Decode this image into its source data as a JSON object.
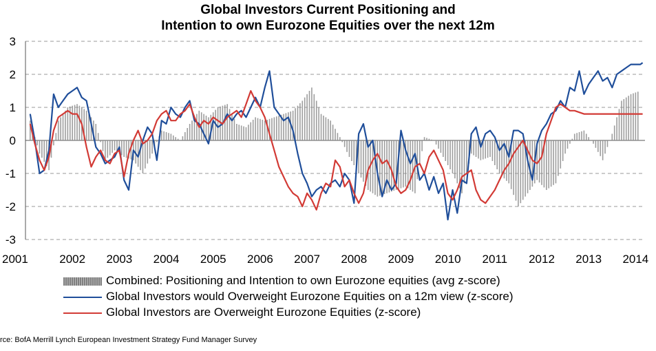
{
  "chart_data": {
    "type": "line",
    "title": "Global Investors Current Positioning and",
    "subtitle": "Intention to own Eurozone Equities over the next 12m",
    "xlabel": "",
    "ylabel": "",
    "ylim": [
      -3,
      3
    ],
    "xlim": [
      2001.0,
      2014.2
    ],
    "yticks": [
      "3",
      "2",
      "1",
      "0",
      "-1",
      "-2",
      "-3"
    ],
    "xticks": [
      "2001",
      "2002",
      "2003",
      "2004",
      "2005",
      "2006",
      "2007",
      "2008",
      "2009",
      "2010",
      "2011",
      "2012",
      "2013",
      "2014"
    ],
    "grid": "horizontal-dashed",
    "legend_position": "bottom",
    "series": [
      {
        "name": "Combined: Positioning and Intention to own Eurozone equities (avg z-score)",
        "type": "bar",
        "color": "#8c8c8c",
        "x": [
          2001.1,
          2001.3,
          2001.5,
          2001.7,
          2001.9,
          2002.1,
          2002.3,
          2002.5,
          2002.7,
          2002.9,
          2003.1,
          2003.3,
          2003.5,
          2003.7,
          2003.9,
          2004.1,
          2004.3,
          2004.5,
          2004.7,
          2004.9,
          2005.1,
          2005.3,
          2005.5,
          2005.7,
          2005.9,
          2006.1,
          2006.3,
          2006.5,
          2006.7,
          2006.9,
          2007.1,
          2007.3,
          2007.5,
          2007.7,
          2007.9,
          2008.1,
          2008.3,
          2008.5,
          2008.7,
          2008.9,
          2009.1,
          2009.3,
          2009.5,
          2009.7,
          2009.9,
          2010.1,
          2010.3,
          2010.5,
          2010.7,
          2010.9,
          2011.1,
          2011.3,
          2011.5,
          2011.7,
          2011.9,
          2012.1,
          2012.3,
          2012.5,
          2012.7,
          2012.9,
          2013.1,
          2013.3,
          2013.5,
          2013.7,
          2013.9,
          2014.1
        ],
        "values": [
          0.6,
          -0.4,
          -0.9,
          0.6,
          1.0,
          1.1,
          0.9,
          0.5,
          -0.6,
          -0.3,
          -0.5,
          -0.6,
          -1.0,
          -0.4,
          0.3,
          0.2,
          0.0,
          0.5,
          0.9,
          0.7,
          1.0,
          1.1,
          0.5,
          0.4,
          0.7,
          0.6,
          0.7,
          0.8,
          0.9,
          1.2,
          1.6,
          0.8,
          0.6,
          0.1,
          -0.5,
          -1.0,
          -1.5,
          -1.7,
          -1.6,
          -1.5,
          -1.4,
          -1.6,
          0.1,
          0.0,
          -0.5,
          -1.0,
          -1.6,
          -0.4,
          -0.6,
          -0.5,
          -1.0,
          -1.3,
          -2.0,
          -1.6,
          -1.2,
          -1.5,
          -1.3,
          -0.4,
          0.2,
          0.3,
          -0.1,
          -0.6,
          0.2,
          1.2,
          1.4,
          1.5
        ]
      },
      {
        "name": "Global Investors would Overweight Eurozone Equities on a 12m view (z-score)",
        "type": "line",
        "color": "#1f4e9a",
        "x": [
          2001.1,
          2001.2,
          2001.3,
          2001.4,
          2001.5,
          2001.6,
          2001.7,
          2001.8,
          2001.9,
          2002.0,
          2002.1,
          2002.2,
          2002.3,
          2002.4,
          2002.5,
          2002.6,
          2002.7,
          2002.8,
          2002.9,
          2003.0,
          2003.1,
          2003.2,
          2003.3,
          2003.4,
          2003.5,
          2003.6,
          2003.7,
          2003.8,
          2003.9,
          2004.0,
          2004.1,
          2004.2,
          2004.3,
          2004.4,
          2004.5,
          2004.6,
          2004.7,
          2004.8,
          2004.9,
          2005.0,
          2005.1,
          2005.2,
          2005.3,
          2005.4,
          2005.5,
          2005.6,
          2005.7,
          2005.8,
          2005.9,
          2006.0,
          2006.1,
          2006.2,
          2006.3,
          2006.4,
          2006.5,
          2006.6,
          2006.7,
          2006.8,
          2006.9,
          2007.0,
          2007.1,
          2007.2,
          2007.3,
          2007.4,
          2007.5,
          2007.6,
          2007.7,
          2007.8,
          2007.9,
          2008.0,
          2008.1,
          2008.2,
          2008.3,
          2008.4,
          2008.5,
          2008.6,
          2008.7,
          2008.8,
          2008.9,
          2009.0,
          2009.1,
          2009.2,
          2009.3,
          2009.4,
          2009.5,
          2009.6,
          2009.7,
          2009.8,
          2009.9,
          2010.0,
          2010.1,
          2010.2,
          2010.3,
          2010.4,
          2010.5,
          2010.6,
          2010.7,
          2010.8,
          2010.9,
          2011.0,
          2011.1,
          2011.2,
          2011.3,
          2011.4,
          2011.5,
          2011.6,
          2011.7,
          2011.8,
          2011.9,
          2012.0,
          2012.1,
          2012.2,
          2012.3,
          2012.4,
          2012.5,
          2012.6,
          2012.7,
          2012.8,
          2012.9,
          2013.0,
          2013.1,
          2013.2,
          2013.3,
          2013.4,
          2013.5,
          2013.6,
          2013.7,
          2013.8,
          2013.9,
          2014.0,
          2014.1,
          2014.15
        ],
        "values": [
          0.8,
          0.0,
          -1.0,
          -0.9,
          -0.3,
          1.4,
          1.0,
          1.2,
          1.4,
          1.5,
          1.6,
          1.3,
          1.2,
          0.5,
          -0.2,
          -0.4,
          -0.7,
          -0.6,
          -0.5,
          -0.2,
          -1.2,
          -1.5,
          -0.3,
          -0.5,
          0.0,
          0.4,
          0.2,
          -0.6,
          0.6,
          0.5,
          1.0,
          0.8,
          0.7,
          1.0,
          1.2,
          0.6,
          0.5,
          0.2,
          -0.1,
          0.6,
          0.4,
          0.5,
          0.8,
          0.6,
          0.8,
          0.9,
          0.7,
          1.0,
          1.3,
          1.0,
          1.6,
          2.1,
          1.0,
          0.8,
          0.6,
          0.7,
          0.3,
          -0.4,
          -1.0,
          -1.3,
          -1.7,
          -1.5,
          -1.4,
          -1.6,
          -1.3,
          -1.2,
          -1.4,
          -1.0,
          -1.2,
          -1.9,
          0.2,
          0.5,
          -0.2,
          0.0,
          -1.0,
          -1.7,
          -1.2,
          -1.5,
          -1.3,
          0.3,
          -0.3,
          -0.7,
          -0.4,
          -1.2,
          -1.0,
          -1.5,
          -1.1,
          -1.6,
          -1.3,
          -2.4,
          -1.5,
          -2.2,
          -1.2,
          -1.3,
          0.2,
          0.4,
          -0.2,
          0.2,
          0.3,
          0.1,
          -0.3,
          -0.1,
          -0.5,
          0.3,
          0.3,
          0.2,
          -0.6,
          -1.2,
          -0.1,
          0.3,
          0.5,
          0.8,
          0.9,
          1.2,
          1.0,
          1.6,
          1.5,
          2.1,
          1.4,
          1.7,
          1.9,
          2.1,
          1.8,
          1.9,
          1.6,
          2.0,
          2.1,
          2.2,
          2.3,
          2.3,
          2.3,
          2.35
        ]
      },
      {
        "name": "Global Investors are Overweight Eurozone Equities (z-score)",
        "type": "line",
        "color": "#d23a35",
        "x": [
          2001.1,
          2001.2,
          2001.3,
          2001.4,
          2001.5,
          2001.6,
          2001.7,
          2001.8,
          2001.9,
          2002.0,
          2002.1,
          2002.2,
          2002.3,
          2002.4,
          2002.5,
          2002.6,
          2002.7,
          2002.8,
          2002.9,
          2003.0,
          2003.1,
          2003.2,
          2003.3,
          2003.4,
          2003.5,
          2003.6,
          2003.7,
          2003.8,
          2003.9,
          2004.0,
          2004.1,
          2004.2,
          2004.3,
          2004.4,
          2004.5,
          2004.6,
          2004.7,
          2004.8,
          2004.9,
          2005.0,
          2005.1,
          2005.2,
          2005.3,
          2005.4,
          2005.5,
          2005.6,
          2005.7,
          2005.8,
          2005.9,
          2006.0,
          2006.1,
          2006.2,
          2006.3,
          2006.4,
          2006.5,
          2006.6,
          2006.7,
          2006.8,
          2006.9,
          2007.0,
          2007.1,
          2007.2,
          2007.3,
          2007.4,
          2007.5,
          2007.6,
          2007.7,
          2007.8,
          2007.9,
          2008.0,
          2008.1,
          2008.2,
          2008.3,
          2008.4,
          2008.5,
          2008.6,
          2008.7,
          2008.8,
          2008.9,
          2009.0,
          2009.1,
          2009.2,
          2009.3,
          2009.4,
          2009.5,
          2009.6,
          2009.7,
          2009.8,
          2009.9,
          2010.0,
          2010.1,
          2010.2,
          2010.3,
          2010.4,
          2010.5,
          2010.6,
          2010.7,
          2010.8,
          2010.9,
          2011.0,
          2011.1,
          2011.2,
          2011.3,
          2011.4,
          2011.5,
          2011.6,
          2011.7,
          2011.8,
          2011.9,
          2012.0,
          2012.1,
          2012.2,
          2012.3,
          2012.4,
          2012.5,
          2012.6,
          2012.7,
          2012.8,
          2012.9,
          2013.0,
          2013.1,
          2013.2,
          2013.3,
          2013.4,
          2013.5,
          2013.6,
          2013.7,
          2013.8,
          2013.9,
          2014.0,
          2014.1,
          2014.15
        ],
        "values": [
          0.5,
          -0.1,
          -0.6,
          -0.9,
          -0.5,
          0.3,
          0.7,
          0.8,
          0.9,
          0.8,
          0.8,
          0.5,
          -0.2,
          -0.8,
          -0.5,
          -0.3,
          -0.6,
          -0.7,
          -0.4,
          -0.3,
          -1.1,
          -0.4,
          0.0,
          0.3,
          -0.1,
          0.0,
          0.2,
          0.6,
          0.8,
          0.9,
          0.6,
          0.6,
          0.8,
          0.9,
          1.1,
          0.7,
          0.4,
          0.6,
          0.5,
          0.7,
          0.6,
          0.5,
          0.7,
          0.8,
          0.9,
          0.7,
          1.1,
          1.5,
          1.2,
          1.0,
          0.7,
          0.2,
          -0.3,
          -0.8,
          -1.1,
          -1.4,
          -1.6,
          -1.7,
          -2.0,
          -1.6,
          -1.8,
          -2.1,
          -1.6,
          -1.3,
          -1.4,
          -0.6,
          -0.8,
          -1.4,
          -1.2,
          -1.6,
          -1.9,
          -1.6,
          -0.9,
          -0.6,
          -0.4,
          -0.7,
          -0.6,
          -0.9,
          -1.4,
          -1.6,
          -1.5,
          -1.2,
          -0.8,
          -0.7,
          -1.0,
          -0.5,
          -0.3,
          -0.6,
          -0.9,
          -1.6,
          -1.8,
          -1.5,
          -1.1,
          -1.0,
          -0.9,
          -1.5,
          -1.8,
          -1.9,
          -1.7,
          -1.5,
          -1.2,
          -0.9,
          -0.7,
          -0.4,
          -0.2,
          0.0,
          -0.3,
          -0.6,
          -0.7,
          -0.5,
          0.2,
          0.6,
          1.0,
          1.1,
          1.0,
          0.9,
          0.9,
          0.85,
          0.8,
          0.8,
          0.8,
          0.8,
          0.8,
          0.8,
          0.8,
          0.8,
          0.8,
          0.8,
          0.8,
          0.8,
          0.8,
          0.8
        ]
      }
    ]
  },
  "source_text": "rce: BofA Merrill Lynch European Investment Strategy Fund Manager Survey"
}
